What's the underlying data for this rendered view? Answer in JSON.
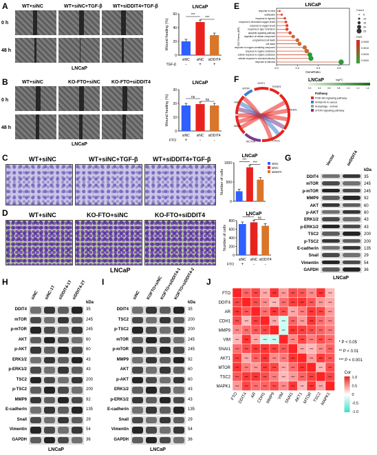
{
  "panels": {
    "A": "A",
    "B": "B",
    "C": "C",
    "D": "D",
    "E": "E",
    "F": "F",
    "G": "G",
    "H": "H",
    "I": "I",
    "J": "J"
  },
  "panelA": {
    "cols": [
      "WT+siNC",
      "WT+siNC+TGF-β",
      "WT+siDDIT4+TGF-β"
    ],
    "rows": [
      "0 h",
      "48 h"
    ],
    "caption": "LNCaP",
    "chart_title": "LNCaP",
    "ylabel": "Wound healing (%)",
    "yticks": [
      "0",
      "20",
      "40",
      "60"
    ],
    "xlabels": [
      "siNC",
      "siNC",
      "siDDIT4"
    ],
    "factor_label": "TGF-β",
    "factor_signs": [
      "-",
      "+",
      "+"
    ],
    "sig": [
      "***",
      "***"
    ]
  },
  "panelB": {
    "cols": [
      "WT+siNC",
      "KO-FTO+siNC",
      "KO-FTO+siDDIT4"
    ],
    "rows": [
      "0 h",
      "48 h"
    ],
    "caption": "LNCaP",
    "chart_title": "LNCaP",
    "ylabel": "Wound healing (%)",
    "yticks": [
      "0",
      "10",
      "20",
      "30"
    ],
    "xlabels": [
      "siNC",
      "siNC",
      "siDDIT4"
    ],
    "factor_label": "FTO",
    "factor_signs": [
      "+",
      "-",
      "-"
    ],
    "sig": [
      "ns",
      "ns"
    ]
  },
  "panelC": {
    "cols": [
      "WT+siNC",
      "WT+siNC+TGF-β",
      "WT+siDDIT4+TGF-β"
    ],
    "chart_title": "LNCaP",
    "ylabel": "Number of cells",
    "yticks": [
      "0",
      "500",
      "1000"
    ],
    "legend": [
      "siNC",
      "siNC",
      "siDDIT4"
    ],
    "sig": [
      "***",
      "***"
    ]
  },
  "panelD": {
    "cols": [
      "WT+siNC",
      "KO-FTO+siNC",
      "KO-FTO+siDDIT4"
    ],
    "caption": "LNCaP",
    "chart_title": "LNCaP",
    "ylabel": "Number of cells",
    "yticks": [
      "0",
      "200",
      "400",
      "600",
      "800"
    ],
    "xlabels": [
      "siNC",
      "siNC",
      "siDDIT4"
    ],
    "factor_label": "FTO",
    "factor_signs": [
      "+",
      "-",
      "-"
    ],
    "sig": [
      "ns",
      "ns"
    ]
  },
  "panelE": {
    "title": "LNCaP",
    "ylabel": "GO Terms (BP)",
    "xlabel": "GeneRatio",
    "xticks": [
      "0.0",
      "0.2",
      "0.4",
      "0.6"
    ],
    "terms": [
      "response to virus",
      "ossification",
      "response to hypoxia",
      "response to decreased oxygen levels",
      "response to oxygen levels",
      "response to type I interferon",
      "apoptotic signaling pathway",
      "regulation of cellular component",
      "programmed cell death",
      "cell death",
      "cellular response to oxygen-containing compound",
      "response to organic substance",
      "cellular response to organic substance",
      "cellular response to chemical stimulus",
      "response to stimulus"
    ],
    "legend_count_title": "Count",
    "legend_count": [
      "5",
      "10",
      "15",
      "20",
      "25"
    ],
    "legend_fdr_title": "FDR",
    "legend_fdr": [
      "0.0005",
      "0.0010",
      "0.0015",
      "0.0020"
    ]
  },
  "panelF": {
    "title": "LNCaP",
    "logfc_title": "logFC",
    "logfc_ticks": [
      "0.2",
      "0.4",
      "0.6",
      "0.8",
      "1.0",
      "1.2",
      "1.4"
    ],
    "pathway_title": "Pathway",
    "pathways": [
      "PI3K-Akt signaling pathway",
      "Wnt/β-Hh in cancer",
      "Autophagy - animal",
      "mTOR signaling pathway"
    ],
    "genes": [
      "DDIT4",
      "TGFβR1",
      "PIK3R1",
      "FOXO1",
      "RICTOR",
      "RPS6KB1",
      "PRKAA1",
      "MTOR"
    ]
  },
  "panelG": {
    "cols": [
      "Vector",
      "oeDDIT4"
    ],
    "kda_label": "kDa",
    "caption": "LNCaP",
    "rows": [
      [
        "DDIT4",
        "35"
      ],
      [
        "mTOR",
        "245"
      ],
      [
        "p-mTOR",
        "245"
      ],
      [
        "MMP9",
        "92"
      ],
      [
        "AKT",
        "60"
      ],
      [
        "p-AKT",
        "60"
      ],
      [
        "ERK1/2",
        "43"
      ],
      [
        "p-ERK1/2",
        "43"
      ],
      [
        "TSC2",
        "200"
      ],
      [
        "p-TSC2",
        "200"
      ],
      [
        "E-cadherin",
        "135"
      ],
      [
        "Snail",
        "29"
      ],
      [
        "Vimentin",
        "54"
      ],
      [
        "GAPDH",
        "36"
      ]
    ]
  },
  "panelH": {
    "cols": [
      "siNC",
      "siNC-1T",
      "siDDIT4-1T",
      "siDDIT4-2T"
    ],
    "kda_label": "kDa",
    "caption": "LNCaP",
    "rows": [
      [
        "DDIT4",
        "35"
      ],
      [
        "mTOR",
        "245"
      ],
      [
        "p-mTOR",
        "245"
      ],
      [
        "AKT",
        "60"
      ],
      [
        "p-AKT",
        "60"
      ],
      [
        "ERK1/2",
        "43"
      ],
      [
        "p-ERK1/2",
        "43"
      ],
      [
        "TSC2",
        "200"
      ],
      [
        "p-TSC2",
        "200"
      ],
      [
        "MMP9",
        "92"
      ],
      [
        "E-cadherin",
        "135"
      ],
      [
        "Snail",
        "29"
      ],
      [
        "Vimentin",
        "54"
      ],
      [
        "GAPDH",
        "36"
      ]
    ]
  },
  "panelI": {
    "cols": [
      "siNC",
      "KOFTO+siNC",
      "KOFTO+siDDIT4-1",
      "KOFTO+siDDIT4-2"
    ],
    "kda_label": "kDa",
    "caption": "LNCaP",
    "rows": [
      [
        "DDIT4",
        "35"
      ],
      [
        "TSC2",
        "200"
      ],
      [
        "p-TSC2",
        "200"
      ],
      [
        "mTOR",
        "245"
      ],
      [
        "p-mTOR",
        "245"
      ],
      [
        "MMP9",
        "92"
      ],
      [
        "AKT",
        "60"
      ],
      [
        "p-AKT",
        "60"
      ],
      [
        "ERK1/2",
        "43"
      ],
      [
        "p-ERK1/2",
        "43"
      ],
      [
        "E-cadherin",
        "135"
      ],
      [
        "Snail",
        "29"
      ],
      [
        "Vimentin",
        "54"
      ],
      [
        "GAPDH",
        "36"
      ]
    ]
  },
  "panelJ": {
    "genes": [
      "FTO",
      "DDIT4",
      "AR",
      "CDH1",
      "MMP9",
      "VIM",
      "SNAI1",
      "AKT1",
      "MTOR",
      "TSC2",
      "MAPK1"
    ],
    "legend_sig": [
      "* P < 0.05",
      "** P < 0.01",
      "*** P < 0.001"
    ],
    "cor_title": "Cor",
    "cor_ticks": [
      "1.0",
      "0.5",
      "0",
      "-0.5",
      "-1.0"
    ]
  },
  "chart_data": [
    {
      "type": "bar",
      "panel": "A",
      "title": "LNCaP",
      "ylabel": "Wound healing (%)",
      "categories": [
        "siNC",
        "siNC",
        "siDDIT4"
      ],
      "values": [
        20,
        48,
        29
      ],
      "ylim": [
        0,
        60
      ],
      "colors": [
        "#2f5fff",
        "#e8231e",
        "#d9762a"
      ]
    },
    {
      "type": "bar",
      "panel": "B",
      "title": "LNCaP",
      "ylabel": "Wound healing (%)",
      "categories": [
        "siNC",
        "siNC",
        "siDDIT4"
      ],
      "values": [
        18.5,
        19.5,
        18.5
      ],
      "ylim": [
        0,
        30
      ],
      "colors": [
        "#2f5fff",
        "#e8231e",
        "#d9762a"
      ]
    },
    {
      "type": "bar",
      "panel": "C",
      "title": "LNCaP",
      "ylabel": "Number of cells",
      "categories": [
        "siNC",
        "siNC",
        "siDDIT4"
      ],
      "values": [
        260,
        880,
        560
      ],
      "ylim": [
        0,
        1000
      ],
      "colors": [
        "#2f5fff",
        "#e8231e",
        "#d9762a"
      ]
    },
    {
      "type": "bar",
      "panel": "D",
      "title": "LNCaP",
      "ylabel": "Number of cells",
      "categories": [
        "siNC",
        "siNC",
        "siDDIT4"
      ],
      "values": [
        720,
        760,
        680
      ],
      "ylim": [
        0,
        800
      ],
      "colors": [
        "#2f5fff",
        "#e8231e",
        "#d9762a"
      ]
    },
    {
      "type": "scatter",
      "panel": "E",
      "title": "LNCaP",
      "xlabel": "GeneRatio",
      "xlim": [
        0,
        0.7
      ],
      "points": [
        [
          0.03,
          "response to virus"
        ],
        [
          0.05,
          "ossification"
        ],
        [
          0.08,
          "response to hypoxia"
        ],
        [
          0.09,
          "response to decreased oxygen levels"
        ],
        [
          0.1,
          "response to oxygen levels"
        ],
        [
          0.1,
          "response to type I interferon"
        ],
        [
          0.13,
          "apoptotic signaling pathway"
        ],
        [
          0.16,
          "regulation of cellular component"
        ],
        [
          0.2,
          "programmed cell death"
        ],
        [
          0.22,
          "cell death"
        ],
        [
          0.27,
          "cellular response to oxygen-containing compound"
        ],
        [
          0.29,
          "response to organic substance"
        ],
        [
          0.32,
          "cellular response to organic substance"
        ],
        [
          0.33,
          "cellular response to chemical stimulus"
        ],
        [
          0.62,
          "response to stimulus"
        ]
      ]
    },
    {
      "type": "heatmap",
      "panel": "J",
      "rows": [
        "FTO",
        "DDIT4",
        "AR",
        "CDH1",
        "MMP9",
        "VIM",
        "SNAI1",
        "AKT1",
        "MTOR",
        "TSC2",
        "MAPK1"
      ],
      "cols": [
        "FTO",
        "DDIT4",
        "AR",
        "CDH1",
        "MMP9",
        "VIM",
        "SNAI1",
        "AKT1",
        "MTOR",
        "TSC2",
        "MAPK1"
      ],
      "range": [
        -1,
        1
      ]
    }
  ]
}
